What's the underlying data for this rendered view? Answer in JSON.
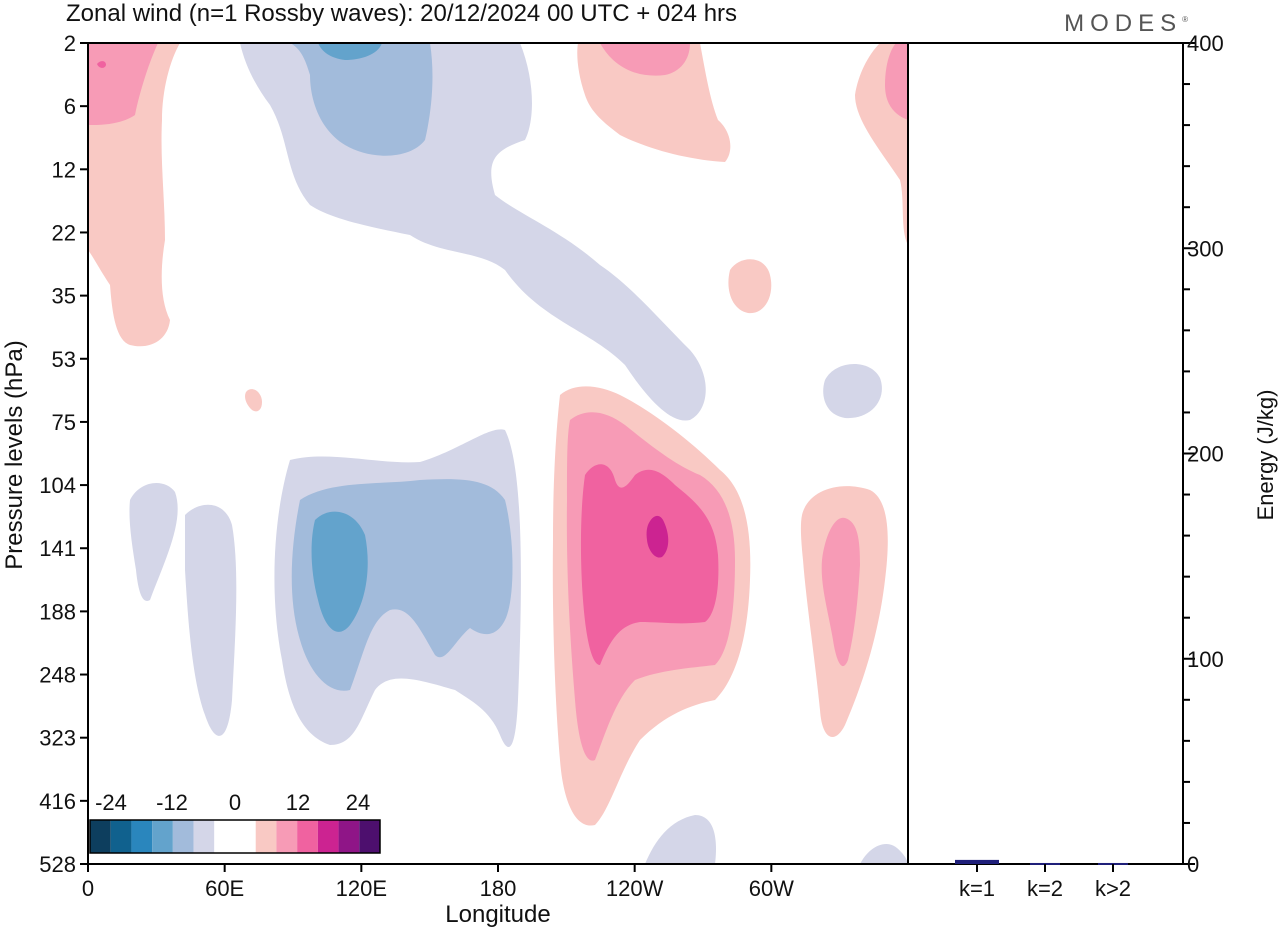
{
  "title": "Zonal wind (n=1 Rossby waves):  20/12/2024  00 UTC  + 024 hrs",
  "logo": "MODES",
  "colors": {
    "neg": [
      "#0d3e5e",
      "#10618e",
      "#2a86bd",
      "#63a3cc",
      "#a2bbdb",
      "#d4d6e8"
    ],
    "pos": [
      "#f9c9c4",
      "#f79bb6",
      "#f062a0",
      "#cc2391",
      "#8f1587",
      "#4d0f6e"
    ],
    "zero": "#ffffff"
  },
  "chart_data": [
    {
      "type": "heatmap",
      "title": "Zonal wind (n=1 Rossby waves):  20/12/2024  00 UTC  + 024 hrs",
      "xlabel": "Longitude",
      "ylabel": "Pressure levels (hPa)",
      "x_ticks": [
        "0",
        "60E",
        "120E",
        "180",
        "120W",
        "60W"
      ],
      "x_tick_degrees": [
        0,
        60,
        120,
        180,
        240,
        300
      ],
      "xlim": [
        0,
        360
      ],
      "y_ticks": [
        "2",
        "6",
        "12",
        "22",
        "35",
        "53",
        "75",
        "104",
        "141",
        "188",
        "248",
        "323",
        "416",
        "528"
      ],
      "y_order": "top-to-bottom",
      "colorbar": {
        "labels": [
          "-24",
          "-12",
          "0",
          "12",
          "24"
        ],
        "levels": [
          -30,
          -25,
          -20,
          -15,
          -10,
          -5,
          0,
          5,
          10,
          15,
          20,
          25,
          30
        ]
      },
      "features": [
        {
          "sign": "neg",
          "max_level": 4,
          "lon": 100,
          "lev_index": 0.6,
          "desc": "stratospheric easterly band"
        },
        {
          "sign": "neg",
          "max_level": 4,
          "lon": 112,
          "lev_index": 9.0,
          "desc": "upper tropospheric easterly core"
        },
        {
          "sign": "pos",
          "max_level": 4,
          "lon": 248,
          "lev_index": 8.1,
          "desc": "upper tropospheric westerly core"
        },
        {
          "sign": "pos",
          "max_level": 3,
          "lon": 330,
          "lev_index": 9.1,
          "desc": "westerly lobe"
        },
        {
          "sign": "pos",
          "max_level": 3,
          "lon": 5,
          "lev_index": 0.3,
          "desc": "stratospheric westerly"
        }
      ]
    },
    {
      "type": "bar",
      "categories": [
        "k=1",
        "k=2",
        "k>2"
      ],
      "values": [
        2,
        0.5,
        0.5
      ],
      "ylabel": "Energy (J/kg)",
      "ylim": [
        0,
        400
      ],
      "y_ticks": [
        0,
        100,
        200,
        300,
        400
      ],
      "bar_color": "#1f1f7a"
    }
  ]
}
